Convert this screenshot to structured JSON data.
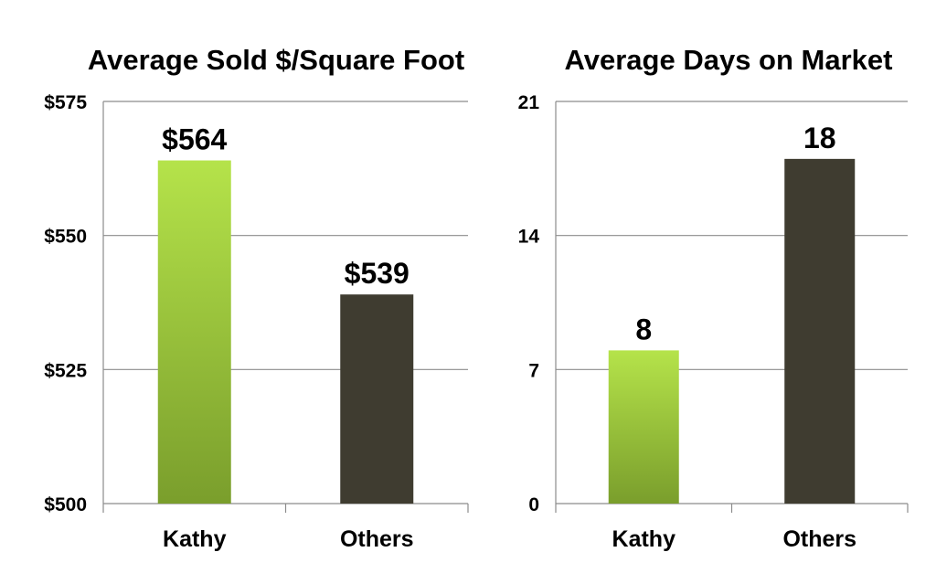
{
  "colors": {
    "kathy_top": "#b5e34a",
    "kathy_bottom": "#7a9e2c",
    "others": "#3f3c30",
    "grid": "#8c8c8c"
  },
  "chart_data": [
    {
      "type": "bar",
      "title": "Average Sold $/Square Foot",
      "categories": [
        "Kathy",
        "Others"
      ],
      "values": [
        564,
        539
      ],
      "value_labels": [
        "$564",
        "$539"
      ],
      "bar_colors": [
        "gradient-green",
        "#3f3c30"
      ],
      "ylim": [
        500,
        575
      ],
      "yticks": [
        500,
        525,
        550,
        575
      ],
      "ytick_labels": [
        "$500",
        "$525",
        "$550",
        "$575"
      ],
      "grid": true,
      "xlabel": "",
      "ylabel": ""
    },
    {
      "type": "bar",
      "title": "Average Days on Market",
      "categories": [
        "Kathy",
        "Others"
      ],
      "values": [
        8,
        18
      ],
      "value_labels": [
        "8",
        "18"
      ],
      "bar_colors": [
        "gradient-green",
        "#3f3c30"
      ],
      "ylim": [
        0,
        21
      ],
      "yticks": [
        0,
        7,
        14,
        21
      ],
      "ytick_labels": [
        "0",
        "7",
        "14",
        "21"
      ],
      "grid": true,
      "xlabel": "",
      "ylabel": ""
    }
  ]
}
